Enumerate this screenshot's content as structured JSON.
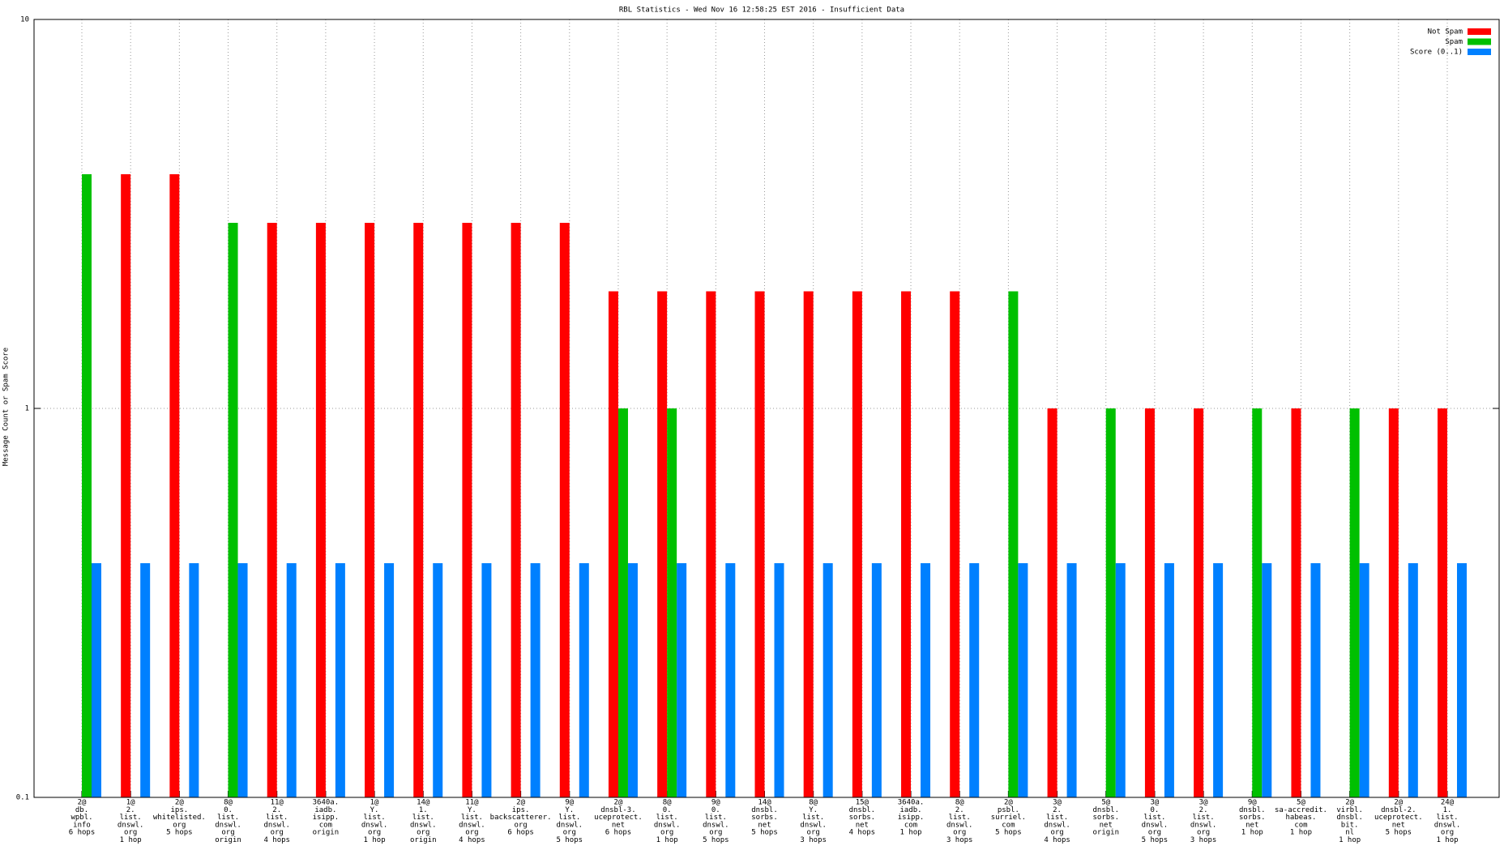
{
  "chart_data": {
    "type": "bar",
    "title": "RBL Statistics - Wed Nov 16 12:58:25 EST 2016 - Insufficient Data",
    "y_label": "Message Count or Spam Score",
    "log_y": true,
    "grid": true,
    "legend": "top-right",
    "ylim": [
      0.1,
      10
    ],
    "yticks": [
      0.1,
      1,
      10
    ],
    "categories": [
      [
        "2@",
        "db.",
        "wpbl.",
        "info",
        "6 hops"
      ],
      [
        "1@",
        "2.",
        "list.",
        "dnswl.",
        "org",
        "1 hop"
      ],
      [
        "2@",
        "ips.",
        "whitelisted.",
        "org",
        "5 hops"
      ],
      [
        "8@",
        "0.",
        "list.",
        "dnswl.",
        "org",
        "origin"
      ],
      [
        "11@",
        "2.",
        "list.",
        "dnswl.",
        "org",
        "4 hops"
      ],
      [
        "3640a.",
        "iadb.",
        "isipp.",
        "com",
        "origin"
      ],
      [
        "1@",
        "Y.",
        "list.",
        "dnswl.",
        "org",
        "1 hop"
      ],
      [
        "14@",
        "1.",
        "list.",
        "dnswl.",
        "org",
        "origin"
      ],
      [
        "11@",
        "Y.",
        "list.",
        "dnswl.",
        "org",
        "4 hops"
      ],
      [
        "2@",
        "ips.",
        "backscatterer.",
        "org",
        "6 hops"
      ],
      [
        "9@",
        "Y.",
        "list.",
        "dnswl.",
        "org",
        "5 hops"
      ],
      [
        "2@",
        "dnsbl-3.",
        "uceprotect.",
        "net",
        "6 hops"
      ],
      [
        "8@",
        "0.",
        "list.",
        "dnswl.",
        "org",
        "1 hop"
      ],
      [
        "9@",
        "0.",
        "list.",
        "dnswl.",
        "org",
        "5 hops"
      ],
      [
        "14@",
        "dnsbl.",
        "sorbs.",
        "net",
        "5 hops"
      ],
      [
        "8@",
        "Y.",
        "list.",
        "dnswl.",
        "org",
        "3 hops"
      ],
      [
        "15@",
        "dnsbl.",
        "sorbs.",
        "net",
        "4 hops"
      ],
      [
        "3640a.",
        "iadb.",
        "isipp.",
        "com",
        "1 hop"
      ],
      [
        "8@",
        "2.",
        "list.",
        "dnswl.",
        "org",
        "3 hops"
      ],
      [
        "2@",
        "psbl.",
        "surriel.",
        "com",
        "5 hops"
      ],
      [
        "3@",
        "2.",
        "list.",
        "dnswl.",
        "org",
        "4 hops"
      ],
      [
        "5@",
        "dnsbl.",
        "sorbs.",
        "net",
        "origin"
      ],
      [
        "3@",
        "0.",
        "list.",
        "dnswl.",
        "org",
        "5 hops"
      ],
      [
        "3@",
        "2.",
        "list.",
        "dnswl.",
        "org",
        "3 hops"
      ],
      [
        "9@",
        "dnsbl.",
        "sorbs.",
        "net",
        "1 hop"
      ],
      [
        "5@",
        "sa-accredit.",
        "habeas.",
        "com",
        "1 hop"
      ],
      [
        "2@",
        "virbl.",
        "dnsbl.",
        "bit.",
        "nl",
        "1 hop"
      ],
      [
        "2@",
        "dnsbl-2.",
        "uceprotect.",
        "net",
        "5 hops"
      ],
      [
        "24@",
        "1.",
        "list.",
        "dnswl.",
        "org",
        "1 hop"
      ]
    ],
    "series": [
      {
        "name": "Not Spam",
        "color": "#ff0000",
        "values": [
          null,
          4,
          4,
          null,
          3,
          3,
          3,
          3,
          3,
          3,
          3,
          2,
          2,
          2,
          2,
          2,
          2,
          2,
          2,
          null,
          1,
          null,
          1,
          1,
          null,
          1,
          null,
          1,
          1
        ]
      },
      {
        "name": "Spam",
        "color": "#00c000",
        "values": [
          4,
          null,
          null,
          3,
          null,
          null,
          null,
          null,
          null,
          null,
          null,
          1,
          1,
          null,
          null,
          null,
          null,
          null,
          null,
          2,
          null,
          1,
          null,
          null,
          1,
          null,
          1,
          null,
          null
        ]
      },
      {
        "name": "Score (0..1)",
        "color": "#0080ff",
        "values": [
          0.4,
          0.4,
          0.4,
          0.4,
          0.4,
          0.4,
          0.4,
          0.4,
          0.4,
          0.4,
          0.4,
          0.4,
          0.4,
          0.4,
          0.4,
          0.4,
          0.4,
          0.4,
          0.4,
          0.4,
          0.4,
          0.4,
          0.4,
          0.4,
          0.4,
          0.4,
          0.4,
          0.4,
          0.4
        ]
      }
    ]
  }
}
